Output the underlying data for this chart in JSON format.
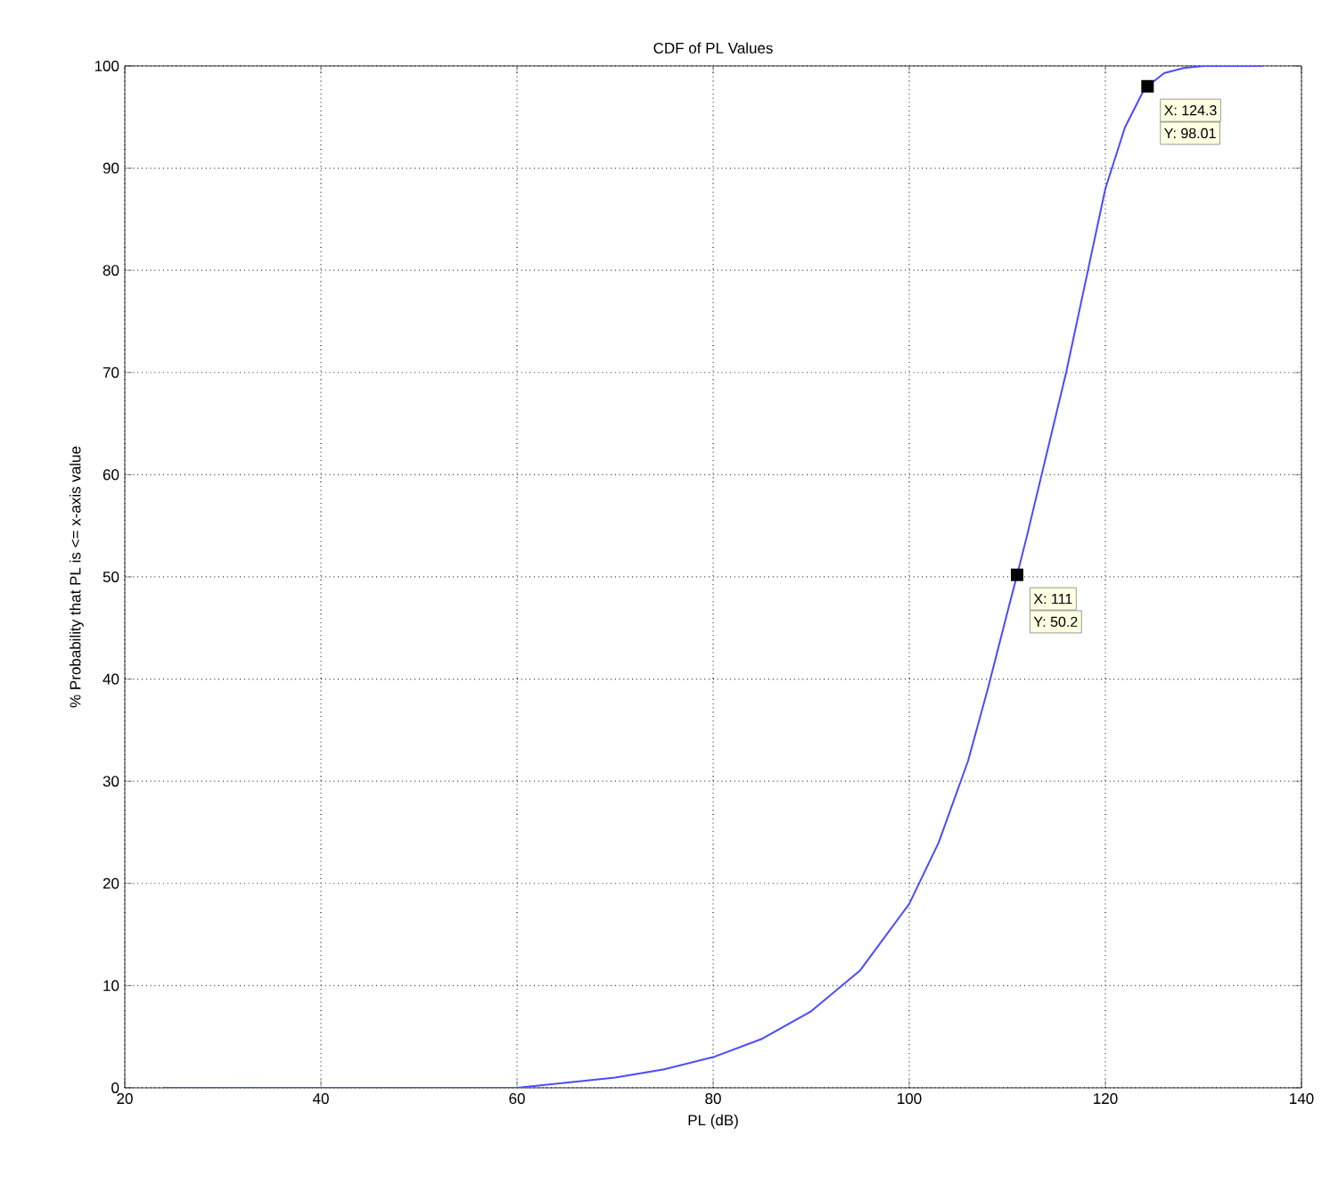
{
  "chart_data": {
    "type": "line",
    "title": "CDF of PL Values",
    "xlabel": "PL (dB)",
    "ylabel": "% Probability that PL is <= x-axis value",
    "xlim": [
      20,
      140
    ],
    "xticks": [
      20,
      40,
      60,
      80,
      100,
      120,
      140
    ],
    "ylim": [
      0,
      100
    ],
    "yticks": [
      0,
      10,
      20,
      30,
      40,
      50,
      60,
      70,
      80,
      90,
      100
    ],
    "grid": true,
    "marker": "none",
    "line_style": "solid",
    "series": [
      {
        "color": "#4a4aff",
        "x": [
          24,
          40,
          50,
          60,
          65,
          70,
          75,
          80,
          85,
          90,
          95,
          100,
          103,
          106,
          108,
          110,
          111,
          112,
          114,
          116,
          118,
          120,
          122,
          124,
          126,
          128,
          130,
          136
        ],
        "values": [
          0,
          0,
          0,
          0,
          0.5,
          1,
          1.8,
          3,
          4.8,
          7.5,
          11.5,
          18,
          24,
          32,
          39,
          46.5,
          50.2,
          54,
          62,
          70,
          79,
          88,
          94,
          97.8,
          99.3,
          99.8,
          100,
          100
        ]
      }
    ],
    "annotations": [
      {
        "text": "X: 111",
        "x": 111,
        "y": 50.2
      },
      "Y: 50.2",
      {
        "text": "X: 124.3",
        "x": 124.3,
        "y": 98.01
      },
      "Y: 98.01"
    ]
  }
}
